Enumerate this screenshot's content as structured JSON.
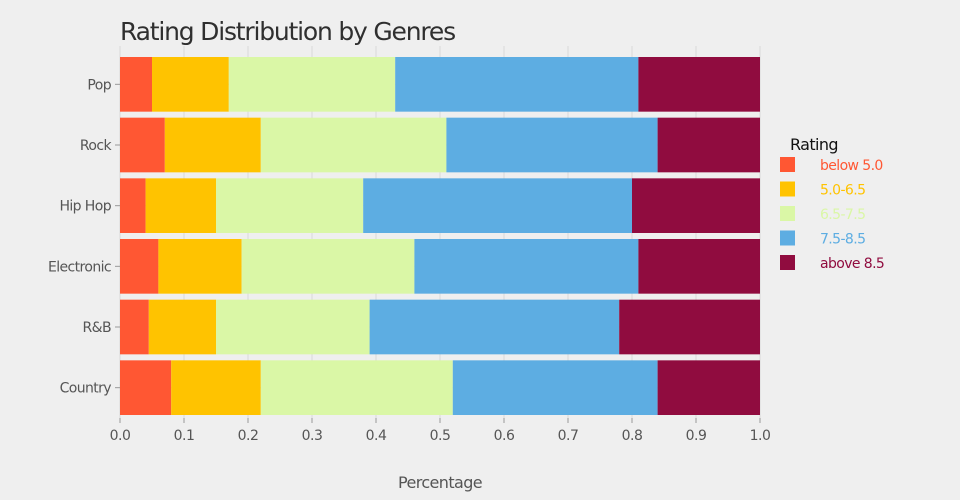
{
  "chart_data": {
    "type": "bar",
    "orientation": "horizontal",
    "stacked": true,
    "title": "Rating Distribution by Genres",
    "xlabel": "Percentage",
    "ylabel": "",
    "xlim": [
      0,
      1
    ],
    "xticks": [
      "0.0",
      "0.1",
      "0.2",
      "0.3",
      "0.4",
      "0.5",
      "0.6",
      "0.7",
      "0.8",
      "0.9",
      "1.0"
    ],
    "categories": [
      "Pop",
      "Rock",
      "Hip Hop",
      "Electronic",
      "R&B",
      "Country"
    ],
    "legend": {
      "title": "Rating",
      "placement": "right"
    },
    "grid": true,
    "series": [
      {
        "name": "below 5.0",
        "color": "#FF5733",
        "values": [
          0.05,
          0.07,
          0.04,
          0.06,
          0.045,
          0.08
        ]
      },
      {
        "name": "5.0-6.5",
        "color": "#FFC300",
        "values": [
          0.12,
          0.15,
          0.11,
          0.13,
          0.105,
          0.14
        ]
      },
      {
        "name": "6.5-7.5",
        "color": "#DAF7A6",
        "values": [
          0.26,
          0.29,
          0.23,
          0.27,
          0.24,
          0.3
        ]
      },
      {
        "name": "7.5-8.5",
        "color": "#5DADE2",
        "values": [
          0.38,
          0.33,
          0.42,
          0.35,
          0.39,
          0.32
        ]
      },
      {
        "name": "above 8.5",
        "color": "#900C3F",
        "values": [
          0.19,
          0.16,
          0.2,
          0.19,
          0.22,
          0.16
        ]
      }
    ]
  }
}
